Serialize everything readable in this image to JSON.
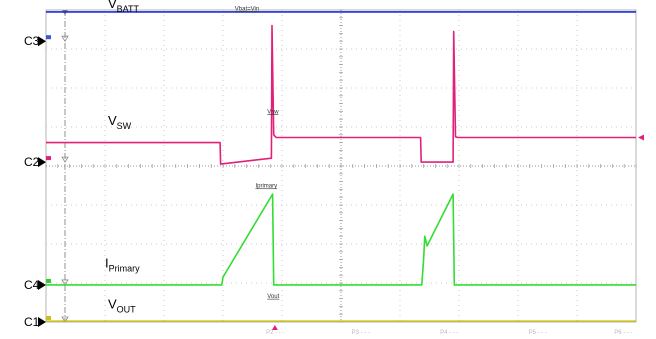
{
  "chart_data": {
    "type": "line",
    "title": "",
    "xlabel": "",
    "ylabel": "",
    "grid": true,
    "x_divisions": 10,
    "y_divisions": 8,
    "channel_markers": [
      {
        "label": "C3",
        "level_div": 7.2,
        "color": "#3b57d6"
      },
      {
        "label": "C2",
        "level_div": 4.1,
        "color": "#e0207a"
      },
      {
        "label": "C4",
        "level_div": 0.95,
        "color": "#33cc33"
      },
      {
        "label": "C1",
        "level_div": 0.0,
        "color": "#c8c020"
      }
    ],
    "series": [
      {
        "key": "vbatt",
        "color": "#1d2bd6",
        "x": [
          0,
          10
        ],
        "y": [
          7.95,
          7.95
        ]
      },
      {
        "key": "vsw",
        "color": "#e0207a",
        "x": [
          0,
          2.95,
          2.96,
          3.82,
          3.83,
          3.86,
          3.9,
          6.35,
          6.36,
          6.9,
          6.91,
          6.94,
          6.98,
          10
        ],
        "y": [
          4.6,
          4.6,
          4.05,
          4.2,
          7.6,
          4.8,
          4.73,
          4.73,
          4.1,
          4.1,
          7.45,
          4.75,
          4.73,
          4.73
        ]
      },
      {
        "key": "iprimary",
        "color": "#33dd33",
        "x": [
          0,
          2.98,
          3.0,
          3.84,
          3.86,
          6.37,
          6.4,
          6.42,
          6.46,
          6.9,
          6.92,
          10
        ],
        "y": [
          0.95,
          0.95,
          1.15,
          3.28,
          0.95,
          0.95,
          1.6,
          2.2,
          1.95,
          3.28,
          0.95,
          0.95
        ]
      },
      {
        "key": "vout",
        "color": "#c8c020",
        "x": [
          0,
          10
        ],
        "y": [
          0.02,
          0.02
        ]
      }
    ],
    "trace_labels": [
      {
        "key": "vbatt",
        "main": "V",
        "sub": "BATT",
        "x_div": 1.05,
        "y_div": 8.05
      },
      {
        "key": "vsw",
        "main": "V",
        "sub": "SW",
        "x_div": 1.05,
        "y_div": 5.05
      },
      {
        "key": "iprimary",
        "main": "I",
        "sub": "Primary",
        "x_div": 1.0,
        "y_div": 1.4
      },
      {
        "key": "vout",
        "main": "V",
        "sub": "OUT",
        "x_div": 1.05,
        "y_div": 0.35
      }
    ],
    "annotations": [
      {
        "text": "Vbat=Vin",
        "x_div": 3.2,
        "y_div": 7.99
      },
      {
        "text": "Vsw",
        "x_div": 3.75,
        "y_div": 5.35
      },
      {
        "text": "Iprimary",
        "x_div": 3.55,
        "y_div": 3.45
      },
      {
        "text": "Vout",
        "x_div": 3.75,
        "y_div": 0.62
      }
    ],
    "x_axis_tags": [
      {
        "text": "P2 - - -",
        "x_div": 3.9
      },
      {
        "text": "P3 - - -",
        "x_div": 5.35
      },
      {
        "text": "P4 - - -",
        "x_div": 6.85
      },
      {
        "text": "P5 - - -",
        "x_div": 8.35
      },
      {
        "text": "P6 - - -",
        "x_div": 9.8
      }
    ]
  }
}
